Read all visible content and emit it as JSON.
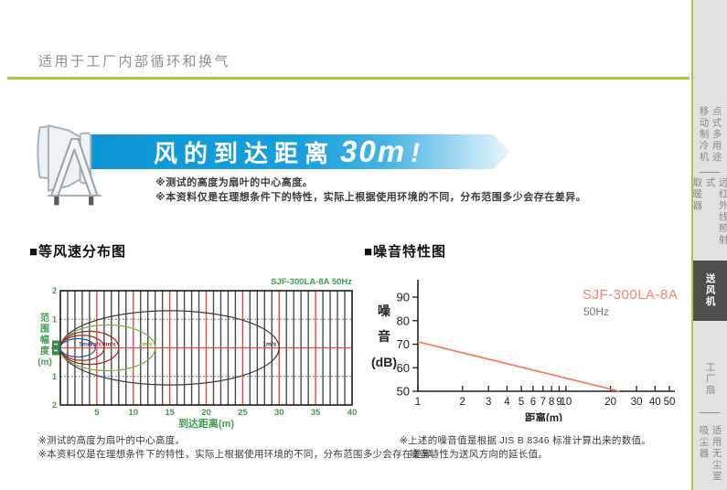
{
  "header": {
    "title": "适用于工厂内部循环和换气"
  },
  "banner": {
    "prefix": "风的到达距离",
    "distance": "30m",
    "bang": "!",
    "bg_color": "#139cd8",
    "notes": [
      "※测试的高度为扇叶的中心高度。",
      "※本资料仅是在理想条件下的特性，实际上根据使用环境的不同，分布范围多少会存在差异。"
    ]
  },
  "icons": {
    "fan_illustration": "portable-jet-fan-on-a-frame-stand",
    "fan_symbol_in_chart": "fan-outlet-marker"
  },
  "wind_section": {
    "title": "■等风速分布图",
    "model_label": "SJF-300LA-8A 50Hz",
    "ylabel_stacked": "范\n围\n幅\n度\n(m)"
  },
  "noise_section": {
    "title": "■噪音特性图",
    "model": "SJF-300LA-8A",
    "freq": "50Hz",
    "ylabel_stacked": "噪\n音\n(dB)"
  },
  "footnotes": {
    "left": [
      "※测试的高度为扇叶的中心高度。",
      "※本资料仅是在理想条件下的特性，实际上根据使用环境的不同，分布范围多少会存在差异。"
    ],
    "right": [
      "※上述的噪音值是根据 JIS B 8346 标准计算出来的数值。",
      "噪音特性为送风方向的延长值。"
    ]
  },
  "sidebar": {
    "bg": "#e1e1e1",
    "accent": "#a9c93d",
    "active_bg": "#4e4e4e",
    "items": [
      {
        "label": "点式多用途\n移动制冷机",
        "active": false
      },
      {
        "label": "远红外线照射式\n取暖器",
        "active": false
      },
      {
        "label": "送风机",
        "active": true
      },
      {
        "label": "工厂扇",
        "active": false
      },
      {
        "label": "适用无尘室\n吸尘器",
        "active": false
      }
    ]
  },
  "chart_data": [
    {
      "type": "contour",
      "title": "等风速分布图",
      "model": "SJF-300LA-8A 50Hz",
      "xlabel": "到达距离(m)",
      "ylabel": "范围幅度(m)",
      "xlim": [
        0,
        40
      ],
      "ylim": [
        -2,
        2
      ],
      "x_ticks": [
        5,
        10,
        15,
        20,
        25,
        30,
        35,
        40
      ],
      "y_ticks": [
        {
          "v": 2,
          "label": "2"
        },
        {
          "v": 1,
          "label": "1"
        },
        {
          "v": -1,
          "label": "1"
        },
        {
          "v": -2,
          "label": "2"
        }
      ],
      "grid": {
        "minor_x_step_m": 1,
        "red_x_step_m": 5,
        "red_center_line": true,
        "h_lines_at": [
          1,
          -1
        ]
      },
      "contours": [
        {
          "label": "1m/s",
          "reach_m": 30,
          "half_width_m": 1.3,
          "color": "#3a3a3a"
        },
        {
          "label": "2m/s",
          "reach_m": 13,
          "half_width_m": 0.8,
          "color": "#76b043"
        },
        {
          "label": "3m/s",
          "reach_m": 8,
          "half_width_m": 0.58,
          "color": "#9c2b23"
        },
        {
          "label": "4m/s",
          "reach_m": 6,
          "half_width_m": 0.44,
          "color": "#9c2b23"
        },
        {
          "label": "5m/s",
          "reach_m": 4.8,
          "half_width_m": 0.32,
          "color": "#2f55a4"
        }
      ]
    },
    {
      "type": "line",
      "title": "噪音特性图",
      "model": "SJF-300LA-8A",
      "freq": "50Hz",
      "xlabel": "距离(m)",
      "ylabel": "噪音(dB)",
      "x_scale": "log",
      "xlim": [
        1,
        50
      ],
      "ylim": [
        50,
        95
      ],
      "x_ticks": [
        1,
        2,
        3,
        4,
        5,
        6,
        7,
        8,
        9,
        10,
        20,
        30,
        40,
        50
      ],
      "y_ticks": [
        90,
        80,
        70,
        60,
        50
      ],
      "series": [
        {
          "name": "SJF-300LA-8A 50Hz",
          "x": [
            1,
            23
          ],
          "y": [
            71,
            50
          ],
          "color": "#ee8366"
        }
      ]
    }
  ]
}
